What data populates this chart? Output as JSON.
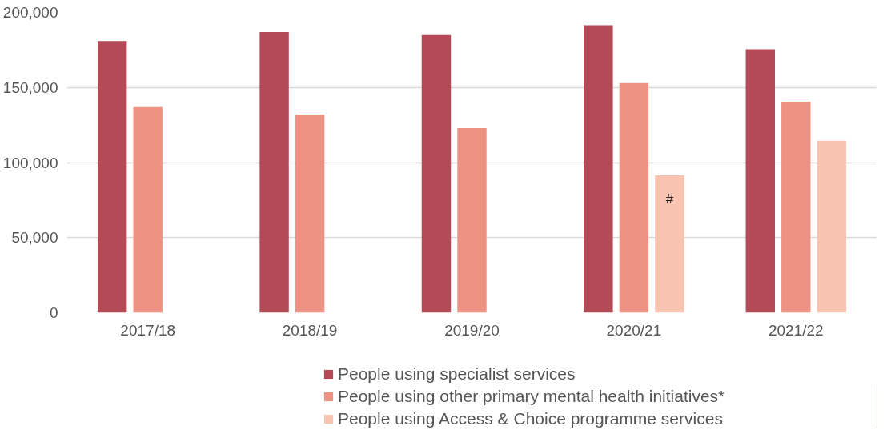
{
  "chart_data": {
    "type": "bar",
    "categories": [
      "2017/18",
      "2018/19",
      "2019/20",
      "2020/21",
      "2021/22"
    ],
    "series": [
      {
        "name": "People using specialist services",
        "color": "#b34a55",
        "values": [
          181000,
          187000,
          185000,
          191500,
          175500
        ]
      },
      {
        "name": "People using other primary mental health initiatives*",
        "color": "#ee9283",
        "values": [
          137000,
          132000,
          123000,
          153000,
          140500
        ]
      },
      {
        "name": "People using Access & Choice programme services",
        "color": "#f9c3b2",
        "values": [
          null,
          null,
          null,
          91500,
          114500
        ]
      }
    ],
    "ylim": [
      0,
      200000
    ],
    "yticks": [
      {
        "value": 0,
        "label": "0"
      },
      {
        "value": 50000,
        "label": "50,000"
      },
      {
        "value": 100000,
        "label": "100,000"
      },
      {
        "value": 150000,
        "label": "150,000"
      },
      {
        "value": 200000,
        "label": "200,000"
      }
    ],
    "grid": "y",
    "legend": "bottom",
    "annotations": [
      "#"
    ]
  }
}
